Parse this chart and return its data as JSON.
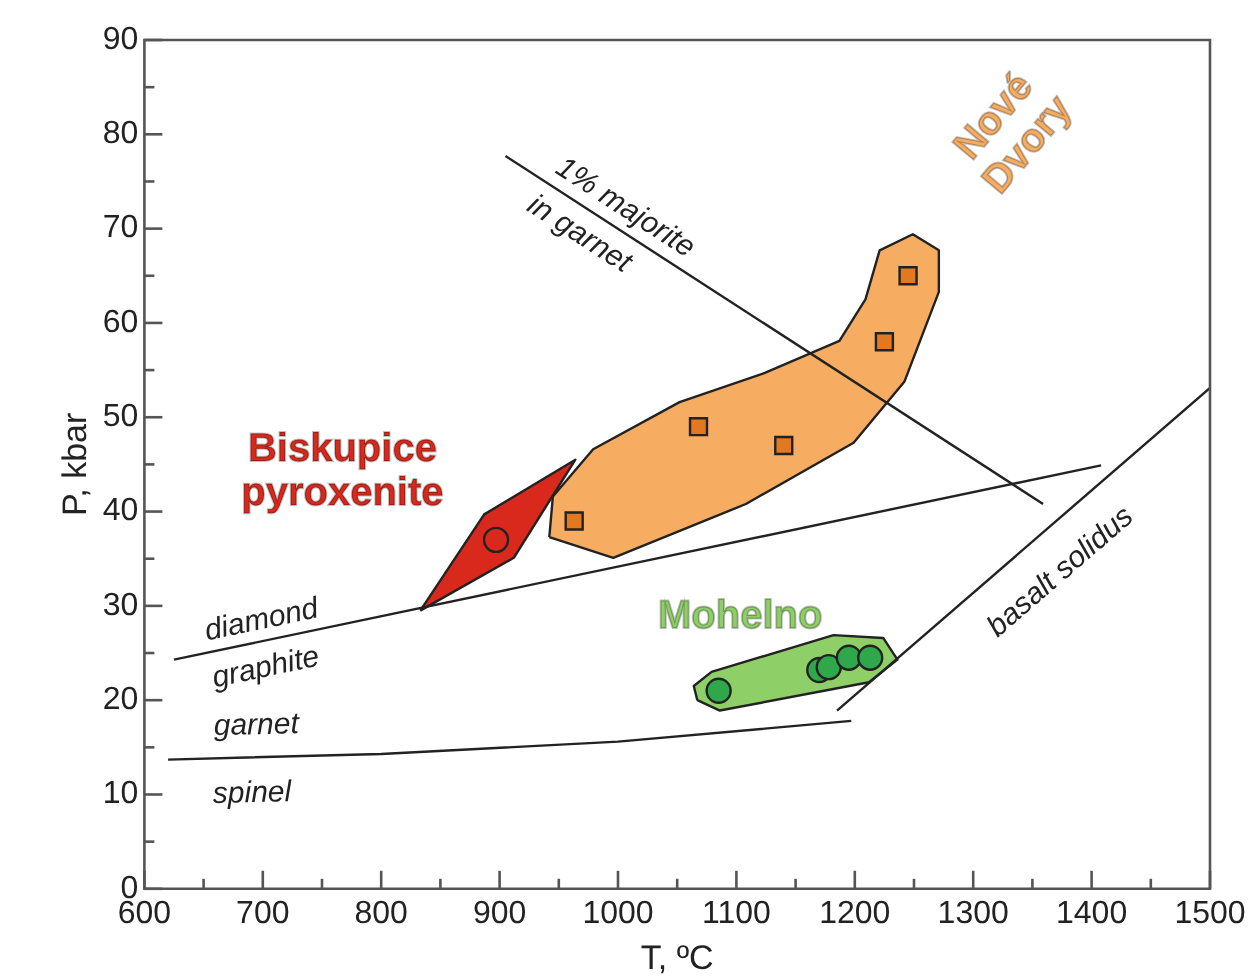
{
  "chart_data": {
    "type": "scatter",
    "xlabel": "T, ºC",
    "ylabel": "P, kbar",
    "xlim": [
      600,
      1500
    ],
    "ylim": [
      0,
      90
    ],
    "xticks": [
      600,
      {
        "value": 650,
        "label": null
      },
      700,
      {
        "value": 750,
        "label": null
      },
      800,
      {
        "value": 850,
        "label": null
      },
      900,
      {
        "value": 950,
        "label": null
      },
      1000,
      {
        "value": 1050,
        "label": null
      },
      1100,
      {
        "value": 1150,
        "label": null
      },
      1200,
      {
        "value": 1250,
        "label": null
      },
      1300,
      {
        "value": 1350,
        "label": null
      },
      1400,
      {
        "value": 1450,
        "label": null
      },
      1500
    ],
    "yticks": [
      0,
      {
        "value": 5,
        "label": null
      },
      10,
      {
        "value": 15,
        "label": null
      },
      20,
      {
        "value": 25,
        "label": null
      },
      30,
      {
        "value": 35,
        "label": null
      },
      40,
      {
        "value": 45,
        "label": null
      },
      50,
      {
        "value": 55,
        "label": null
      },
      60,
      {
        "value": 65,
        "label": null
      },
      70,
      {
        "value": 75,
        "label": null
      },
      80,
      {
        "value": 85,
        "label": null
      },
      90
    ],
    "grid": false,
    "legend": false,
    "series": [
      {
        "type": "area",
        "name": "Biskupice pyroxenite",
        "color": "#d9291c",
        "marker": "none",
        "x": [
          833,
          912,
          964,
          887
        ],
        "values": [
          29.5,
          35.1,
          45.5,
          39.7
        ]
      },
      {
        "type": "area",
        "name": "Nové Dvory",
        "color": "#f6ad62",
        "marker": "none",
        "x": [
          942,
          996,
          1108,
          1199,
          1242,
          1271,
          1271,
          1249,
          1221,
          1209,
          1187,
          1124,
          1052,
          979,
          945
        ],
        "values": [
          37.3,
          35.1,
          40.8,
          47.3,
          53.8,
          63.3,
          67.7,
          69.4,
          67.7,
          62.5,
          58.1,
          54.7,
          51.6,
          46.6,
          41.6
        ]
      },
      {
        "type": "area",
        "name": "Mohelno",
        "color": "#8fcf68",
        "marker": "none",
        "x": [
          1067,
          1086,
          1212,
          1236,
          1224,
          1182,
          1079,
          1064
        ],
        "values": [
          20.0,
          18.9,
          21.9,
          24.3,
          26.6,
          26.9,
          23.0,
          21.5
        ]
      },
      {
        "type": "scatter",
        "color": "#e2781f",
        "marker": "square",
        "x": [
          963,
          1068,
          1140,
          1225,
          1245
        ],
        "values": [
          39,
          49,
          47,
          58,
          65
        ]
      },
      {
        "type": "scatter",
        "color": "#d9291c",
        "marker": "circle",
        "x": [
          897
        ],
        "values": [
          37
        ]
      },
      {
        "type": "scatter",
        "color": "#2ea84a",
        "marker": "circle",
        "x": [
          1085,
          1170,
          1178,
          1195,
          1213
        ],
        "values": [
          21,
          23.2,
          23.5,
          24.5,
          24.5
        ]
      },
      {
        "type": "line",
        "color": "#222222",
        "marker": "none",
        "x": [
          625,
          1408
        ],
        "values": [
          24.3,
          44.9
        ]
      },
      {
        "type": "line",
        "color": "#222222",
        "marker": "none",
        "x": [
          620,
          800,
          1000,
          1197
        ],
        "values": [
          13.7,
          14.3,
          15.6,
          17.8
        ]
      },
      {
        "type": "line",
        "color": "#222222",
        "marker": "none",
        "x": [
          1185,
          1500
        ],
        "values": [
          18.9,
          53.1
        ]
      },
      {
        "type": "line",
        "color": "#222222",
        "marker": "none",
        "x": [
          905,
          1359
        ],
        "values": [
          77.7,
          40.8
        ]
      }
    ],
    "annotations": [
      "diamond",
      "graphite",
      "garnet",
      "spinel",
      "basalt solidus",
      "1% majorite",
      "in garnet"
    ]
  }
}
